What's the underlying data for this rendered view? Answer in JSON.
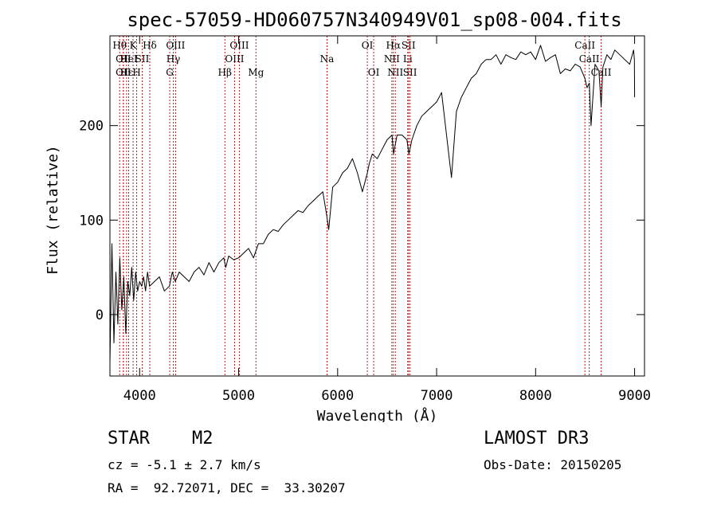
{
  "chart_data": {
    "type": "line",
    "title": "spec-57059-HD060757N340949V01_sp08-004.fits",
    "xlabel": "Wavelength (Å)",
    "ylabel": "Flux (relative)",
    "xlim": [
      3700,
      9100
    ],
    "ylim": [
      -65,
      295
    ],
    "xticks": [
      4000,
      5000,
      6000,
      7000,
      8000,
      9000
    ],
    "yticks": [
      0,
      100,
      200
    ],
    "grid": false,
    "series": [
      {
        "name": "flux",
        "x": [
          3700,
          3720,
          3740,
          3760,
          3780,
          3800,
          3820,
          3840,
          3860,
          3880,
          3900,
          3920,
          3940,
          3960,
          3980,
          4000,
          4020,
          4040,
          4060,
          4080,
          4100,
          4150,
          4200,
          4250,
          4300,
          4330,
          4360,
          4400,
          4450,
          4500,
          4550,
          4600,
          4650,
          4700,
          4750,
          4800,
          4850,
          4870,
          4900,
          4950,
          5000,
          5050,
          5100,
          5150,
          5200,
          5250,
          5300,
          5350,
          5400,
          5450,
          5500,
          5550,
          5600,
          5650,
          5700,
          5750,
          5800,
          5850,
          5890,
          5910,
          5950,
          6000,
          6050,
          6100,
          6150,
          6200,
          6250,
          6300,
          6320,
          6350,
          6400,
          6450,
          6500,
          6550,
          6565,
          6600,
          6650,
          6700,
          6720,
          6750,
          6800,
          6850,
          6900,
          6950,
          7000,
          7050,
          7100,
          7150,
          7200,
          7250,
          7300,
          7350,
          7400,
          7450,
          7500,
          7550,
          7600,
          7650,
          7700,
          7750,
          7800,
          7850,
          7900,
          7950,
          8000,
          8050,
          8100,
          8150,
          8200,
          8250,
          8300,
          8350,
          8400,
          8450,
          8498,
          8520,
          8542,
          8560,
          8600,
          8640,
          8662,
          8680,
          8720,
          8760,
          8800,
          8850,
          8900,
          8950,
          8990,
          8998,
          9000
        ],
        "y": [
          -50,
          75,
          -30,
          45,
          -10,
          60,
          5,
          40,
          -20,
          35,
          20,
          50,
          15,
          45,
          25,
          35,
          30,
          40,
          25,
          45,
          30,
          35,
          40,
          25,
          30,
          45,
          35,
          45,
          40,
          35,
          45,
          50,
          42,
          55,
          45,
          55,
          60,
          50,
          62,
          58,
          60,
          65,
          70,
          60,
          75,
          75,
          85,
          90,
          88,
          95,
          100,
          105,
          110,
          108,
          115,
          120,
          125,
          130,
          105,
          90,
          135,
          140,
          150,
          155,
          165,
          150,
          130,
          150,
          160,
          170,
          165,
          175,
          185,
          190,
          170,
          190,
          190,
          185,
          170,
          185,
          200,
          210,
          215,
          220,
          225,
          235,
          190,
          145,
          215,
          230,
          240,
          250,
          255,
          265,
          270,
          270,
          275,
          265,
          275,
          272,
          270,
          278,
          275,
          278,
          270,
          285,
          268,
          272,
          275,
          255,
          260,
          258,
          265,
          262,
          250,
          240,
          245,
          200,
          265,
          258,
          220,
          262,
          275,
          270,
          280,
          275,
          270,
          265,
          280,
          270,
          230
        ]
      }
    ],
    "line_markers": [
      {
        "wave": 3798,
        "label": "Hθ",
        "row": 1
      },
      {
        "wave": 3835,
        "label": "OII",
        "row": 2
      },
      {
        "wave": 3835,
        "label": "OII",
        "row": 3
      },
      {
        "wave": 3868,
        "label": "Hε",
        "row": 3
      },
      {
        "wave": 3889,
        "label": "HeI",
        "row": 2
      },
      {
        "wave": 3934,
        "label": "K",
        "row": 1
      },
      {
        "wave": 3970,
        "label": "H",
        "row": 3
      },
      {
        "wave": 4026,
        "label": "SII",
        "row": 2
      },
      {
        "wave": 4102,
        "label": "Hδ",
        "row": 1
      },
      {
        "wave": 4304,
        "label": "G",
        "row": 3
      },
      {
        "wave": 4340,
        "label": "Hγ",
        "row": 2
      },
      {
        "wave": 4363,
        "label": "OIII",
        "row": 1
      },
      {
        "wave": 4861,
        "label": "Hβ",
        "row": 3
      },
      {
        "wave": 4959,
        "label": "OIII",
        "row": 2
      },
      {
        "wave": 5007,
        "label": "OIII",
        "row": 1
      },
      {
        "wave": 5175,
        "label": "Mg",
        "row": 3
      },
      {
        "wave": 5893,
        "label": "Na",
        "row": 2
      },
      {
        "wave": 6300,
        "label": "OI",
        "row": 1
      },
      {
        "wave": 6364,
        "label": "OI",
        "row": 3
      },
      {
        "wave": 6548,
        "label": "NII",
        "row": 2
      },
      {
        "wave": 6563,
        "label": "Hα",
        "row": 1
      },
      {
        "wave": 6583,
        "label": "NII",
        "row": 3
      },
      {
        "wave": 6708,
        "label": "Li",
        "row": 2
      },
      {
        "wave": 6716,
        "label": "SII",
        "row": 1
      },
      {
        "wave": 6731,
        "label": "SII",
        "row": 3
      },
      {
        "wave": 8498,
        "label": "CaII",
        "row": 1
      },
      {
        "wave": 8542,
        "label": "CaII",
        "row": 2
      },
      {
        "wave": 8662,
        "label": "CaII",
        "row": 3
      }
    ]
  },
  "footer": {
    "object_type": "STAR",
    "subclass": "M2",
    "survey": "LAMOST DR3",
    "redshift_text": "cz = -5.1 ± 2.7 km/s",
    "obs_date_text": "Obs-Date: 20150205",
    "coords_text": "RA =  92.72071, DEC =  33.30207"
  },
  "colors": {
    "spectrum": "#000000",
    "marker_line": "#b22222",
    "axes": "#000000",
    "background": "#ffffff"
  }
}
